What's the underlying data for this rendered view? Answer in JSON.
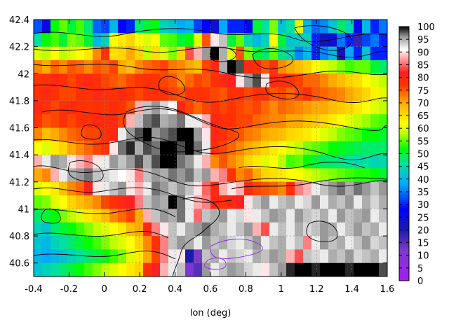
{
  "chart_data": {
    "type": "heatmap",
    "title": "",
    "xlabel": "lon (deg)",
    "ylabel": "",
    "xlim": [
      -0.4,
      1.6
    ],
    "ylim": [
      40.5,
      42.4
    ],
    "grid": true,
    "x_ticks": [
      "-0.4",
      "-0.2",
      "0",
      "0.2",
      "0.4",
      "0.6",
      "0.8",
      "1",
      "1.2",
      "1.4",
      "1.6"
    ],
    "y_ticks": [
      "40.6",
      "40.8",
      "41",
      "41.2",
      "41.4",
      "41.6",
      "41.8",
      "42",
      "42.2",
      "42.4"
    ],
    "x_tick_values": [
      -0.4,
      -0.2,
      0,
      0.2,
      0.4,
      0.6,
      0.8,
      1.0,
      1.2,
      1.4,
      1.6
    ],
    "y_tick_values": [
      40.6,
      40.8,
      41.0,
      41.2,
      41.4,
      41.6,
      41.8,
      42.0,
      42.2,
      42.4
    ],
    "colorbar": {
      "range": [
        0,
        100
      ],
      "ticks": [
        "0",
        "5",
        "10",
        "15",
        "20",
        "25",
        "30",
        "35",
        "40",
        "45",
        "50",
        "55",
        "60",
        "65",
        "70",
        "75",
        "80",
        "85",
        "90",
        "95",
        "100"
      ],
      "tick_values": [
        0,
        5,
        10,
        15,
        20,
        25,
        30,
        35,
        40,
        45,
        50,
        55,
        60,
        65,
        70,
        75,
        80,
        85,
        90,
        95,
        100
      ],
      "stops": [
        {
          "v": 0,
          "c": "#a020f0"
        },
        {
          "v": 12,
          "c": "#7a3cc8"
        },
        {
          "v": 20,
          "c": "#1b1ba8"
        },
        {
          "v": 28,
          "c": "#0000ff"
        },
        {
          "v": 38,
          "c": "#00aaff"
        },
        {
          "v": 46,
          "c": "#00e0a0"
        },
        {
          "v": 52,
          "c": "#00ff00"
        },
        {
          "v": 58,
          "c": "#bfff00"
        },
        {
          "v": 62,
          "c": "#ffff00"
        },
        {
          "v": 70,
          "c": "#ffaa00"
        },
        {
          "v": 77,
          "c": "#ff3300"
        },
        {
          "v": 82,
          "c": "#ff2020"
        },
        {
          "v": 88,
          "c": "#ffb0b0"
        },
        {
          "v": 91,
          "c": "#ffffff"
        },
        {
          "v": 96,
          "c": "#999999"
        },
        {
          "v": 100,
          "c": "#000000"
        }
      ]
    },
    "cells": [
      [
        33,
        25,
        52,
        55,
        50,
        54,
        48,
        34,
        32,
        40,
        28,
        30,
        48,
        50,
        52,
        44,
        42,
        38,
        40,
        32,
        28,
        24,
        38,
        30,
        30,
        26,
        50,
        46,
        56,
        42,
        46,
        60,
        40,
        34,
        36,
        42,
        48,
        44,
        26,
        40,
        30,
        35
      ],
      [
        46,
        52,
        54,
        50,
        56,
        55,
        50,
        40,
        44,
        62,
        64,
        66,
        62,
        60,
        62,
        55,
        54,
        50,
        52,
        60,
        75,
        90,
        94,
        50,
        55,
        45,
        40,
        44,
        62,
        50,
        42,
        43,
        44,
        30,
        22,
        24,
        35,
        30,
        18,
        32,
        35,
        30
      ],
      [
        60,
        58,
        62,
        58,
        60,
        62,
        64,
        72,
        78,
        65,
        66,
        70,
        66,
        58,
        65,
        60,
        56,
        66,
        84,
        88,
        96,
        100,
        95,
        60,
        75,
        56,
        50,
        48,
        55,
        47,
        44,
        36,
        40,
        30,
        36,
        40,
        22,
        38,
        30,
        42,
        30,
        30
      ],
      [
        72,
        70,
        74,
        72,
        75,
        74,
        72,
        75,
        74,
        76,
        70,
        68,
        72,
        74,
        75,
        76,
        73,
        72,
        70,
        68,
        76,
        80,
        95,
        100,
        98,
        80,
        78,
        75,
        78,
        72,
        70,
        68,
        66,
        62,
        60,
        58,
        56,
        54,
        55,
        55,
        50,
        48
      ],
      [
        77,
        78,
        80,
        78,
        76,
        78,
        80,
        78,
        76,
        75,
        74,
        76,
        77,
        78,
        77,
        76,
        75,
        72,
        74,
        76,
        75,
        78,
        80,
        82,
        90,
        96,
        98,
        90,
        80,
        78,
        77,
        76,
        74,
        74,
        72,
        70,
        68,
        66,
        65,
        62,
        60,
        58
      ],
      [
        78,
        80,
        78,
        76,
        76,
        78,
        77,
        80,
        78,
        78,
        80,
        77,
        76,
        78,
        78,
        78,
        76,
        75,
        77,
        78,
        77,
        76,
        75,
        78,
        78,
        76,
        78,
        77,
        75,
        76,
        74,
        76,
        78,
        75,
        74,
        73,
        72,
        70,
        68,
        66,
        63,
        60
      ],
      [
        80,
        78,
        76,
        78,
        80,
        78,
        77,
        78,
        77,
        79,
        77,
        75,
        88,
        94,
        96,
        93,
        91,
        80,
        76,
        74,
        76,
        78,
        76,
        77,
        76,
        75,
        76,
        74,
        72,
        74,
        73,
        72,
        71,
        70,
        70,
        68,
        67,
        66,
        64,
        62,
        60,
        58
      ],
      [
        77,
        75,
        76,
        78,
        76,
        78,
        78,
        80,
        79,
        80,
        76,
        88,
        94,
        97,
        98,
        95,
        96,
        97,
        92,
        92,
        88,
        80,
        78,
        78,
        76,
        76,
        74,
        73,
        72,
        72,
        70,
        70,
        68,
        67,
        66,
        64,
        62,
        60,
        58,
        57,
        55,
        54
      ],
      [
        72,
        68,
        70,
        72,
        74,
        75,
        76,
        76,
        78,
        80,
        92,
        96,
        98,
        100,
        96,
        97,
        98,
        100,
        100,
        96,
        90,
        80,
        78,
        76,
        75,
        73,
        72,
        70,
        69,
        68,
        66,
        65,
        64,
        62,
        60,
        58,
        56,
        55,
        54,
        52,
        52,
        50
      ],
      [
        62,
        60,
        64,
        66,
        70,
        72,
        74,
        76,
        78,
        90,
        97,
        99,
        95,
        98,
        97,
        100,
        100,
        98,
        100,
        97,
        92,
        78,
        76,
        74,
        72,
        70,
        68,
        66,
        64,
        62,
        60,
        58,
        56,
        55,
        54,
        52,
        51,
        50,
        49,
        48,
        48,
        48
      ],
      [
        88,
        92,
        96,
        95,
        90,
        88,
        86,
        90,
        92,
        96,
        94,
        96,
        98,
        95,
        98,
        100,
        100,
        97,
        96,
        92,
        88,
        72,
        75,
        72,
        70,
        66,
        64,
        60,
        62,
        58,
        54,
        55,
        52,
        50,
        48,
        48,
        47,
        46,
        45,
        46,
        44,
        45
      ],
      [
        70,
        72,
        88,
        92,
        95,
        96,
        97,
        94,
        93,
        92,
        91,
        90,
        86,
        94,
        96,
        95,
        97,
        96,
        97,
        94,
        96,
        88,
        86,
        78,
        72,
        74,
        70,
        66,
        65,
        64,
        62,
        62,
        60,
        58,
        57,
        56,
        55,
        54,
        53,
        53,
        52,
        50
      ],
      [
        60,
        62,
        64,
        68,
        72,
        74,
        82,
        90,
        92,
        94,
        96,
        90,
        88,
        92,
        97,
        96,
        94,
        96,
        94,
        90,
        85,
        80,
        88,
        90,
        88,
        80,
        76,
        75,
        74,
        72,
        78,
        86,
        88,
        92,
        94,
        96,
        97,
        95,
        97,
        96,
        94,
        96
      ],
      [
        55,
        56,
        60,
        62,
        66,
        68,
        70,
        72,
        76,
        78,
        80,
        82,
        86,
        94,
        96,
        95,
        100,
        97,
        92,
        88,
        86,
        80,
        78,
        80,
        82,
        90,
        94,
        96,
        92,
        94,
        95,
        92,
        93,
        96,
        92,
        95,
        94,
        96,
        92,
        95,
        93,
        95
      ],
      [
        48,
        50,
        52,
        56,
        58,
        60,
        64,
        66,
        68,
        72,
        74,
        76,
        70,
        88,
        94,
        96,
        95,
        97,
        92,
        85,
        94,
        95,
        96,
        92,
        93,
        90,
        92,
        94,
        96,
        95,
        92,
        96,
        94,
        93,
        95,
        92,
        96,
        94,
        95,
        96,
        92,
        94
      ],
      [
        44,
        42,
        48,
        50,
        52,
        54,
        56,
        58,
        60,
        62,
        64,
        68,
        70,
        80,
        86,
        90,
        94,
        92,
        95,
        96,
        97,
        95,
        94,
        92,
        94,
        96,
        88,
        84,
        92,
        94,
        92,
        95,
        93,
        94,
        96,
        95,
        92,
        94,
        96,
        94,
        95,
        92
      ],
      [
        42,
        40,
        44,
        46,
        48,
        50,
        52,
        54,
        56,
        58,
        60,
        62,
        66,
        72,
        78,
        86,
        94,
        96,
        95,
        92,
        96,
        94,
        95,
        93,
        92,
        94,
        96,
        92,
        94,
        95,
        92,
        94,
        86,
        92,
        96,
        94,
        95,
        92,
        94,
        96,
        93,
        94
      ],
      [
        40,
        38,
        40,
        42,
        44,
        46,
        48,
        50,
        52,
        54,
        56,
        60,
        64,
        70,
        76,
        86,
        92,
        90,
        20,
        12,
        94,
        95,
        92,
        94,
        93,
        92,
        95,
        94,
        96,
        95,
        88,
        84,
        94,
        93,
        92,
        95,
        94,
        96,
        93,
        94,
        95,
        92
      ],
      [
        42,
        44,
        46,
        48,
        50,
        52,
        54,
        56,
        58,
        60,
        62,
        64,
        66,
        78,
        82,
        88,
        92,
        94,
        10,
        15,
        96,
        92,
        94,
        96,
        95,
        93,
        92,
        90,
        94,
        96,
        99,
        100,
        100,
        99,
        100,
        100,
        100,
        99,
        100,
        100,
        100,
        98
      ]
    ]
  }
}
